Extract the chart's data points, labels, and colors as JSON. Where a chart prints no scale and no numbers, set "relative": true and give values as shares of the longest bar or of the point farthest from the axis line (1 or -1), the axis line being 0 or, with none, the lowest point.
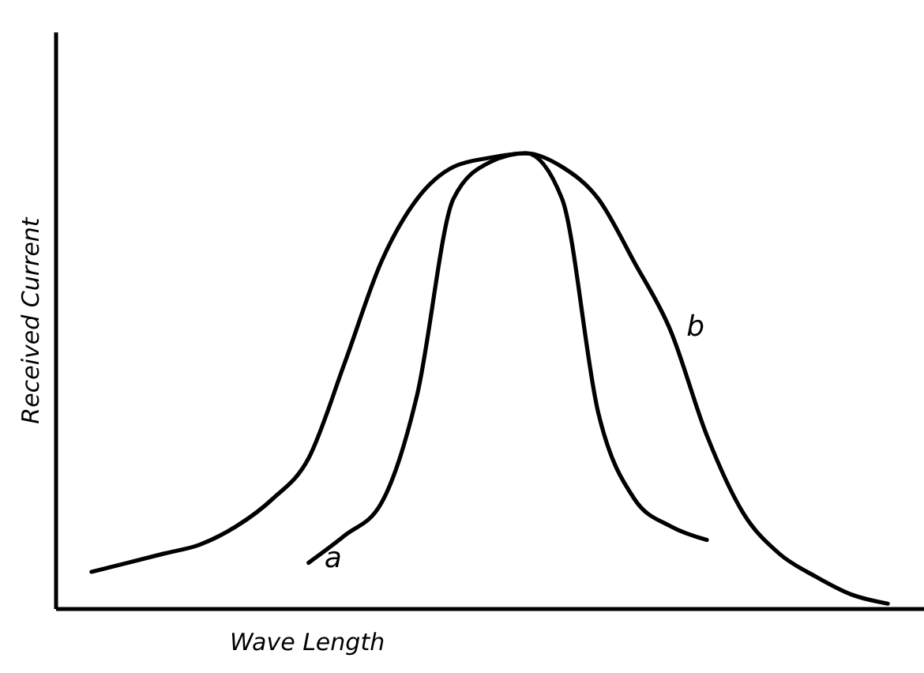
{
  "chart_data": {
    "type": "line",
    "xlabel": "Wave Length",
    "ylabel": "Received Current",
    "relative": true,
    "tick_labels": false,
    "grid": false,
    "marker": "none",
    "line_style": "solid",
    "categories": [
      null,
      null,
      null,
      null,
      null,
      null,
      null,
      null,
      null,
      null,
      null,
      null,
      null,
      null,
      null,
      null,
      null,
      null,
      null,
      null,
      null,
      null,
      null
    ],
    "series": [
      {
        "name": "a",
        "color": "#000000",
        "values": [
          null,
          null,
          null,
          null,
          null,
          null,
          0.1,
          0.16,
          0.23,
          0.47,
          0.9,
          0.98,
          1,
          0.9,
          0.43,
          0.24,
          0.18,
          0.15,
          null,
          null,
          null,
          null,
          null
        ]
      },
      {
        "name": "b",
        "color": "#000000",
        "values": [
          0.08,
          0.1,
          0.12,
          0.14,
          0.18,
          0.24,
          0.33,
          0.54,
          0.76,
          0.9,
          0.97,
          0.99,
          1,
          0.97,
          0.9,
          0.76,
          0.61,
          0.38,
          0.21,
          0.12,
          0.07,
          0.03,
          0.01
        ]
      }
    ]
  }
}
